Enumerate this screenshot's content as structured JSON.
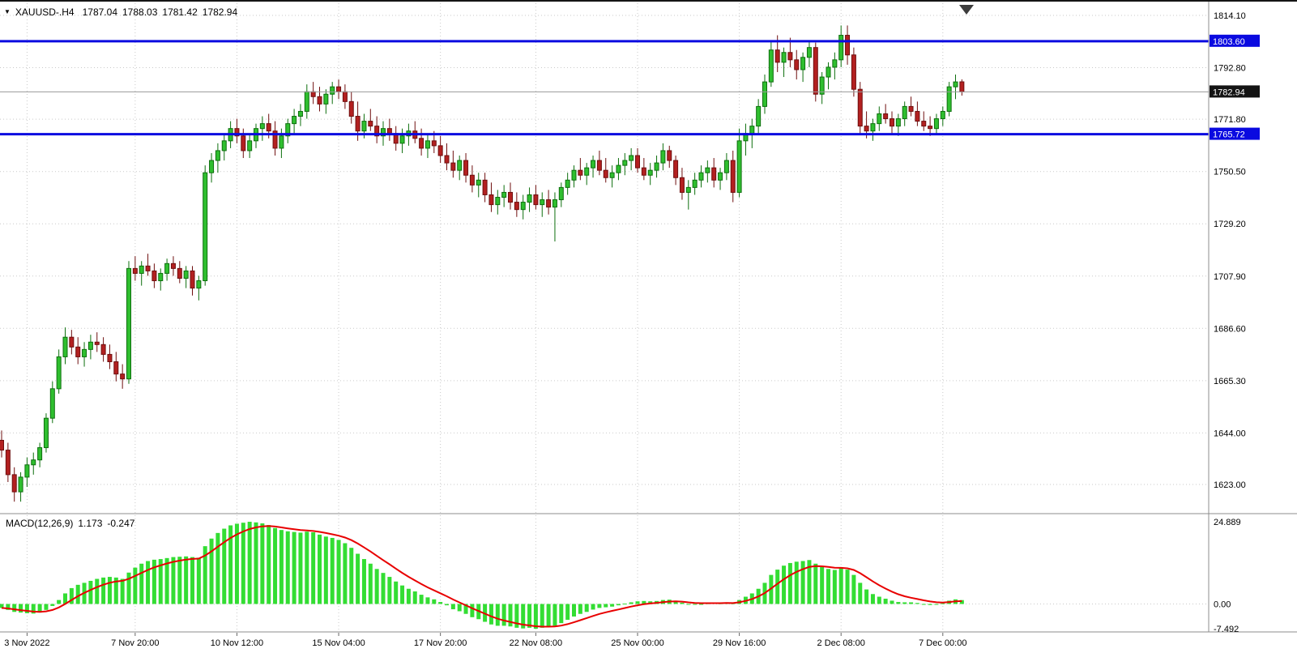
{
  "header": {
    "symbol_period": "XAUUSD-.H4",
    "open": "1787.04",
    "high": "1788.03",
    "low": "1781.42",
    "close": "1782.94"
  },
  "macd_header": {
    "name": "MACD(12,26,9)",
    "main_value": "1.173",
    "signal_value": "-0.247"
  },
  "icons": {
    "quick_trade_arrow": "▼"
  },
  "colors": {
    "background": "#ffffff",
    "grid": "#c9c9c9",
    "axis_text": "#000000",
    "candle_up": "#2fbf2f",
    "candle_up_border": "#0e6f0e",
    "candle_down": "#b32020",
    "candle_down_border": "#6f0f0f",
    "macd_bar": "#33dd33",
    "macd_signal": "#e80000",
    "hline": "#0a0ae0",
    "hline_tag": "#0a0ae0",
    "current_line": "#9a9a9a",
    "current_tag": "#141414",
    "separator": "#8c8c8c",
    "shift_marker": "#3c3c3c"
  },
  "chart_data": {
    "type": "candlestick",
    "symbol": "XAUUSD-",
    "timeframe": "H4",
    "title": "XAUUSD-.H4 1787.04 1788.03 1781.42 1782.94",
    "price_axis": [
      1814.1,
      1792.8,
      1771.8,
      1750.5,
      1729.2,
      1707.9,
      1686.6,
      1665.3,
      1644.0,
      1623.0
    ],
    "ylim": [
      1616,
      1814.1
    ],
    "grid": true,
    "hlines": [
      {
        "price": 1803.6,
        "label": "1803.60"
      },
      {
        "price": 1765.72,
        "label": "1765.72"
      }
    ],
    "current": {
      "price": 1782.94,
      "label": "1782.94"
    },
    "x_ticks": [
      {
        "index": 4,
        "label": "3 Nov 2022"
      },
      {
        "index": 21,
        "label": "7 Nov 20:00"
      },
      {
        "index": 37,
        "label": "10 Nov 12:00"
      },
      {
        "index": 53,
        "label": "15 Nov 04:00"
      },
      {
        "index": 69,
        "label": "17 Nov 20:00"
      },
      {
        "index": 84,
        "label": "22 Nov 08:00"
      },
      {
        "index": 100,
        "label": "25 Nov 00:00"
      },
      {
        "index": 116,
        "label": "29 Nov 16:00"
      },
      {
        "index": 132,
        "label": "2 Dec 08:00"
      },
      {
        "index": 148,
        "label": "7 Dec 00:00"
      }
    ],
    "candles": [
      [
        1641,
        1645,
        1634,
        1637
      ],
      [
        1637,
        1640,
        1624,
        1627
      ],
      [
        1627,
        1630,
        1616,
        1620
      ],
      [
        1620,
        1628,
        1616,
        1626
      ],
      [
        1626,
        1634,
        1622,
        1631
      ],
      [
        1631,
        1636,
        1627,
        1633
      ],
      [
        1633,
        1640,
        1630,
        1638
      ],
      [
        1638,
        1652,
        1636,
        1650
      ],
      [
        1650,
        1665,
        1648,
        1662
      ],
      [
        1662,
        1678,
        1660,
        1675
      ],
      [
        1675,
        1687,
        1672,
        1683
      ],
      [
        1683,
        1686,
        1676,
        1679
      ],
      [
        1679,
        1683,
        1672,
        1675
      ],
      [
        1675,
        1681,
        1671,
        1678
      ],
      [
        1678,
        1684,
        1674,
        1681
      ],
      [
        1681,
        1685,
        1677,
        1680
      ],
      [
        1680,
        1683,
        1673,
        1676
      ],
      [
        1676,
        1680,
        1670,
        1673
      ],
      [
        1673,
        1677,
        1665,
        1668
      ],
      [
        1668,
        1672,
        1662,
        1666
      ],
      [
        1666,
        1714,
        1664,
        1711
      ],
      [
        1711,
        1716,
        1706,
        1709
      ],
      [
        1709,
        1714,
        1704,
        1712
      ],
      [
        1712,
        1717,
        1708,
        1710
      ],
      [
        1710,
        1713,
        1703,
        1706
      ],
      [
        1706,
        1711,
        1702,
        1709
      ],
      [
        1709,
        1715,
        1706,
        1713
      ],
      [
        1713,
        1716,
        1708,
        1711
      ],
      [
        1711,
        1714,
        1705,
        1707
      ],
      [
        1707,
        1712,
        1703,
        1710
      ],
      [
        1710,
        1712,
        1700,
        1703
      ],
      [
        1703,
        1708,
        1698,
        1706
      ],
      [
        1706,
        1753,
        1704,
        1750
      ],
      [
        1750,
        1758,
        1746,
        1755
      ],
      [
        1755,
        1762,
        1750,
        1759
      ],
      [
        1759,
        1766,
        1755,
        1763
      ],
      [
        1763,
        1771,
        1760,
        1768
      ],
      [
        1768,
        1772,
        1762,
        1765
      ],
      [
        1765,
        1768,
        1756,
        1759
      ],
      [
        1759,
        1766,
        1756,
        1763
      ],
      [
        1763,
        1770,
        1760,
        1768
      ],
      [
        1768,
        1773,
        1763,
        1770
      ],
      [
        1770,
        1774,
        1764,
        1767
      ],
      [
        1767,
        1771,
        1757,
        1760
      ],
      [
        1760,
        1768,
        1756,
        1765
      ],
      [
        1765,
        1772,
        1762,
        1770
      ],
      [
        1770,
        1776,
        1766,
        1773
      ],
      [
        1773,
        1778,
        1769,
        1775
      ],
      [
        1775,
        1786,
        1772,
        1783
      ],
      [
        1783,
        1787,
        1778,
        1781
      ],
      [
        1781,
        1785,
        1775,
        1778
      ],
      [
        1778,
        1784,
        1774,
        1782
      ],
      [
        1782,
        1787,
        1778,
        1785
      ],
      [
        1785,
        1788,
        1780,
        1783
      ],
      [
        1783,
        1786,
        1776,
        1779
      ],
      [
        1779,
        1783,
        1770,
        1773
      ],
      [
        1773,
        1779,
        1763,
        1767
      ],
      [
        1767,
        1774,
        1764,
        1771
      ],
      [
        1771,
        1776,
        1767,
        1769
      ],
      [
        1769,
        1773,
        1762,
        1765
      ],
      [
        1765,
        1771,
        1761,
        1768
      ],
      [
        1768,
        1772,
        1763,
        1766
      ],
      [
        1766,
        1769,
        1759,
        1762
      ],
      [
        1762,
        1768,
        1758,
        1765
      ],
      [
        1765,
        1770,
        1761,
        1767
      ],
      [
        1767,
        1771,
        1762,
        1764
      ],
      [
        1764,
        1768,
        1757,
        1760
      ],
      [
        1760,
        1766,
        1756,
        1763
      ],
      [
        1763,
        1767,
        1758,
        1761
      ],
      [
        1761,
        1765,
        1754,
        1757
      ],
      [
        1757,
        1762,
        1751,
        1754
      ],
      [
        1754,
        1759,
        1748,
        1751
      ],
      [
        1751,
        1757,
        1747,
        1755
      ],
      [
        1755,
        1758,
        1746,
        1749
      ],
      [
        1749,
        1753,
        1742,
        1745
      ],
      [
        1745,
        1750,
        1740,
        1747
      ],
      [
        1747,
        1750,
        1738,
        1741
      ],
      [
        1741,
        1746,
        1734,
        1737
      ],
      [
        1737,
        1743,
        1733,
        1740
      ],
      [
        1740,
        1745,
        1736,
        1742
      ],
      [
        1742,
        1746,
        1735,
        1738
      ],
      [
        1738,
        1742,
        1732,
        1735
      ],
      [
        1735,
        1741,
        1731,
        1738
      ],
      [
        1738,
        1744,
        1734,
        1741
      ],
      [
        1741,
        1745,
        1735,
        1737
      ],
      [
        1737,
        1742,
        1732,
        1739
      ],
      [
        1739,
        1743,
        1733,
        1736
      ],
      [
        1736,
        1742,
        1722,
        1739
      ],
      [
        1739,
        1746,
        1736,
        1744
      ],
      [
        1744,
        1750,
        1741,
        1747
      ],
      [
        1747,
        1753,
        1744,
        1751
      ],
      [
        1751,
        1756,
        1747,
        1749
      ],
      [
        1749,
        1754,
        1745,
        1752
      ],
      [
        1752,
        1757,
        1748,
        1755
      ],
      [
        1755,
        1759,
        1749,
        1751
      ],
      [
        1751,
        1756,
        1746,
        1748
      ],
      [
        1748,
        1753,
        1744,
        1750
      ],
      [
        1750,
        1756,
        1747,
        1753
      ],
      [
        1753,
        1758,
        1749,
        1755
      ],
      [
        1755,
        1760,
        1751,
        1757
      ],
      [
        1757,
        1760,
        1750,
        1752
      ],
      [
        1752,
        1756,
        1747,
        1749
      ],
      [
        1749,
        1754,
        1745,
        1751
      ],
      [
        1751,
        1757,
        1748,
        1754
      ],
      [
        1754,
        1762,
        1751,
        1759
      ],
      [
        1759,
        1761,
        1752,
        1755
      ],
      [
        1755,
        1757,
        1745,
        1748
      ],
      [
        1748,
        1752,
        1739,
        1742
      ],
      [
        1742,
        1747,
        1735,
        1744
      ],
      [
        1744,
        1750,
        1741,
        1747
      ],
      [
        1747,
        1753,
        1744,
        1750
      ],
      [
        1750,
        1755,
        1746,
        1752
      ],
      [
        1752,
        1756,
        1744,
        1747
      ],
      [
        1747,
        1752,
        1743,
        1750
      ],
      [
        1750,
        1758,
        1747,
        1755
      ],
      [
        1755,
        1759,
        1738,
        1742
      ],
      [
        1742,
        1768,
        1740,
        1763
      ],
      [
        1763,
        1770,
        1757,
        1766
      ],
      [
        1766,
        1772,
        1760,
        1769
      ],
      [
        1769,
        1780,
        1766,
        1777
      ],
      [
        1777,
        1790,
        1774,
        1787
      ],
      [
        1787,
        1804,
        1785,
        1800
      ],
      [
        1800,
        1806,
        1791,
        1795
      ],
      [
        1795,
        1801,
        1789,
        1799
      ],
      [
        1799,
        1805,
        1793,
        1796
      ],
      [
        1796,
        1800,
        1788,
        1792
      ],
      [
        1792,
        1799,
        1787,
        1797
      ],
      [
        1797,
        1804,
        1793,
        1801
      ],
      [
        1801,
        1803,
        1779,
        1782
      ],
      [
        1782,
        1791,
        1778,
        1789
      ],
      [
        1789,
        1795,
        1784,
        1793
      ],
      [
        1793,
        1799,
        1788,
        1796
      ],
      [
        1796,
        1810,
        1793,
        1806
      ],
      [
        1806,
        1810,
        1794,
        1798
      ],
      [
        1798,
        1801,
        1781,
        1784
      ],
      [
        1784,
        1787,
        1766,
        1769
      ],
      [
        1769,
        1775,
        1764,
        1767
      ],
      [
        1767,
        1772,
        1763,
        1770
      ],
      [
        1770,
        1777,
        1767,
        1774
      ],
      [
        1774,
        1778,
        1770,
        1772
      ],
      [
        1772,
        1775,
        1766,
        1769
      ],
      [
        1769,
        1774,
        1765,
        1772
      ],
      [
        1772,
        1779,
        1769,
        1777
      ],
      [
        1777,
        1781,
        1773,
        1775
      ],
      [
        1775,
        1779,
        1769,
        1771
      ],
      [
        1771,
        1775,
        1767,
        1769
      ],
      [
        1769,
        1773,
        1765,
        1768
      ],
      [
        1768,
        1774,
        1766,
        1772
      ],
      [
        1772,
        1777,
        1769,
        1775
      ],
      [
        1775,
        1787,
        1773,
        1785
      ],
      [
        1785,
        1790,
        1780,
        1787
      ],
      [
        1787.04,
        1788.03,
        1781.42,
        1782.94
      ]
    ],
    "macd": {
      "name": "MACD(12,26,9)",
      "main_value": 1.173,
      "signal_value": -0.247,
      "axis": [
        {
          "value": 24.889,
          "label": "24.889"
        },
        {
          "value": 0,
          "label": "0.00"
        },
        {
          "value": -7.492,
          "label": "-7.492"
        }
      ],
      "histogram": [
        -1.2,
        -1.8,
        -2.4,
        -2.6,
        -2.8,
        -2.9,
        -2.6,
        -1.8,
        -0.6,
        1.2,
        3.2,
        4.8,
        5.8,
        6.4,
        7.0,
        7.6,
        8.0,
        8.2,
        8.0,
        7.6,
        9.5,
        11.0,
        12.2,
        13.0,
        13.4,
        13.6,
        13.9,
        14.2,
        14.3,
        14.4,
        14.2,
        14.0,
        17.5,
        19.8,
        21.5,
        22.8,
        23.8,
        24.3,
        24.6,
        24.889,
        24.7,
        24.4,
        23.9,
        23.0,
        22.4,
        22.0,
        21.8,
        21.6,
        21.9,
        21.7,
        21.0,
        20.4,
        20.0,
        19.4,
        18.4,
        17.0,
        15.2,
        13.6,
        12.2,
        10.6,
        9.4,
        8.2,
        6.8,
        5.6,
        4.6,
        3.8,
        2.8,
        2.0,
        1.4,
        0.6,
        -0.4,
        -1.6,
        -2.2,
        -3.0,
        -4.0,
        -4.6,
        -5.4,
        -6.2,
        -6.6,
        -6.6,
        -6.8,
        -7.2,
        -7.4,
        -7.2,
        -7.492,
        -7.2,
        -6.9,
        -6.6,
        -5.8,
        -4.8,
        -3.8,
        -3.0,
        -2.4,
        -1.7,
        -1.2,
        -1.0,
        -0.8,
        -0.4,
        0.1,
        0.5,
        0.8,
        0.9,
        0.8,
        0.9,
        1.2,
        1.3,
        1.0,
        0.4,
        -0.1,
        -0.2,
        0.0,
        0.2,
        0.3,
        0.2,
        0.5,
        0.2,
        1.2,
        2.2,
        3.2,
        4.6,
        6.4,
        8.8,
        10.4,
        11.6,
        12.4,
        12.8,
        13.0,
        13.3,
        12.2,
        11.2,
        10.6,
        10.3,
        10.8,
        10.4,
        8.8,
        6.4,
        4.4,
        3.0,
        2.2,
        1.6,
        1.0,
        0.6,
        0.5,
        0.5,
        0.3,
        0.0,
        -0.3,
        -0.2,
        0.2,
        1.0,
        1.4,
        1.173
      ]
    }
  }
}
